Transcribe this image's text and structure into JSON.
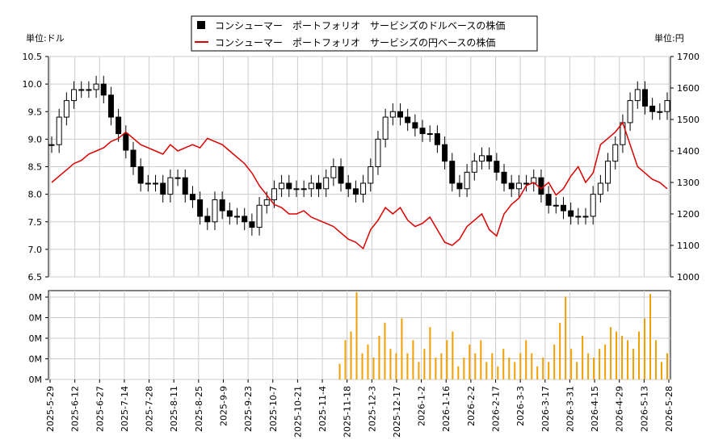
{
  "chart_data": {
    "type": "line",
    "legend": [
      {
        "label": "コンシューマー　ポートフォリオ　サービシズのドルベースの株価",
        "color": "#000000",
        "marker": "square"
      },
      {
        "label": "コンシューマー　ポートフォリオ　サービシズの円ベースの株価",
        "color": "#dd0000",
        "marker": "line"
      }
    ],
    "ylabel_left": "単位:ドル",
    "ylabel_right": "単位:円",
    "ylim_left": [
      6.5,
      10.5
    ],
    "ylim_right": [
      1000,
      1700
    ],
    "yticks_left": [
      "6.5",
      "7.0",
      "7.5",
      "8.0",
      "8.5",
      "9.0",
      "9.5",
      "10.0",
      "10.5"
    ],
    "yticks_right": [
      "1000",
      "1100",
      "1200",
      "1300",
      "1400",
      "1500",
      "1600",
      "1700"
    ],
    "volume_ticks": [
      "0M",
      "0M",
      "0M",
      "0M",
      "0M"
    ],
    "grid": true,
    "legend_position": "top-center",
    "x_dates": [
      "2025-5-29",
      "2025-6-12",
      "2025-6-27",
      "2025-7-14",
      "2025-7-28",
      "2025-8-11",
      "2025-8-25",
      "2025-9-9",
      "2025-9-23",
      "2025-10-7",
      "2025-10-21",
      "2025-11-4",
      "2025-11-18",
      "2025-12-3",
      "2025-12-17",
      "2026-1-2",
      "2026-1-16",
      "2026-2-2",
      "2026-2-17",
      "2026-3-3",
      "2026-3-17",
      "2026-3-31",
      "2026-4-15",
      "2026-4-29",
      "2026-5-13",
      "2026-5-28"
    ],
    "usd_close": [
      8.9,
      9.4,
      9.7,
      9.9,
      9.9,
      9.9,
      10.0,
      9.8,
      9.4,
      9.1,
      8.8,
      8.5,
      8.2,
      8.2,
      8.2,
      8.0,
      8.3,
      8.3,
      8.0,
      7.9,
      7.6,
      7.5,
      7.9,
      7.7,
      7.6,
      7.6,
      7.5,
      7.4,
      7.8,
      7.9,
      8.1,
      8.2,
      8.1,
      8.1,
      8.1,
      8.2,
      8.1,
      8.3,
      8.5,
      8.2,
      8.1,
      8.0,
      8.2,
      8.5,
      9.0,
      9.4,
      9.5,
      9.4,
      9.3,
      9.2,
      9.1,
      9.1,
      8.9,
      8.6,
      8.2,
      8.1,
      8.4,
      8.6,
      8.7,
      8.6,
      8.4,
      8.2,
      8.1,
      8.2,
      8.2,
      8.3,
      8.0,
      7.8,
      7.8,
      7.7,
      7.6,
      7.6,
      7.6,
      8.0,
      8.2,
      8.6,
      8.9,
      9.3,
      9.7,
      9.9,
      9.6,
      9.5,
      9.5,
      9.7
    ],
    "jpy_close": [
      1300,
      1320,
      1340,
      1360,
      1370,
      1390,
      1400,
      1410,
      1430,
      1440,
      1460,
      1440,
      1420,
      1410,
      1400,
      1390,
      1420,
      1400,
      1410,
      1420,
      1410,
      1440,
      1430,
      1420,
      1400,
      1380,
      1360,
      1330,
      1290,
      1260,
      1230,
      1220,
      1200,
      1200,
      1210,
      1190,
      1180,
      1170,
      1160,
      1140,
      1120,
      1110,
      1090,
      1150,
      1180,
      1220,
      1200,
      1220,
      1180,
      1160,
      1170,
      1190,
      1150,
      1110,
      1100,
      1120,
      1160,
      1180,
      1200,
      1150,
      1130,
      1200,
      1230,
      1250,
      1290,
      1300,
      1280,
      1300,
      1260,
      1280,
      1320,
      1350,
      1300,
      1330,
      1420,
      1440,
      1460,
      1490,
      1420,
      1350,
      1330,
      1310,
      1300,
      1280
    ],
    "volume_relative": [
      0,
      0,
      0,
      0,
      0,
      0,
      0,
      0,
      0,
      0,
      0,
      0,
      0,
      0,
      0,
      0,
      0,
      0,
      0,
      0,
      0,
      0,
      0,
      0,
      0,
      0,
      0,
      0,
      0,
      0,
      0,
      0,
      0,
      0,
      0,
      0,
      0,
      0,
      0,
      0,
      0,
      0,
      0,
      0,
      0,
      0,
      0,
      0,
      0,
      0,
      0,
      0.18,
      0.45,
      0.55,
      1.0,
      0.3,
      0.4,
      0.25,
      0.5,
      0.65,
      0.35,
      0.3,
      0.7,
      0.3,
      0.45,
      0.2,
      0.35,
      0.6,
      0.25,
      0.3,
      0.45,
      0.55,
      0.15,
      0.25,
      0.4,
      0.3,
      0.45,
      0.2,
      0.3,
      0.15,
      0.35,
      0.25,
      0.2,
      0.3,
      0.45,
      0.3,
      0.15,
      0.25,
      0.2,
      0.4,
      0.65,
      0.95,
      0.35,
      0.2,
      0.5,
      0.3,
      0.25,
      0.35,
      0.4,
      0.6,
      0.55,
      0.5,
      0.45,
      0.35,
      0.55,
      0.7,
      0.98,
      0.45,
      0.2,
      0.3
    ]
  }
}
